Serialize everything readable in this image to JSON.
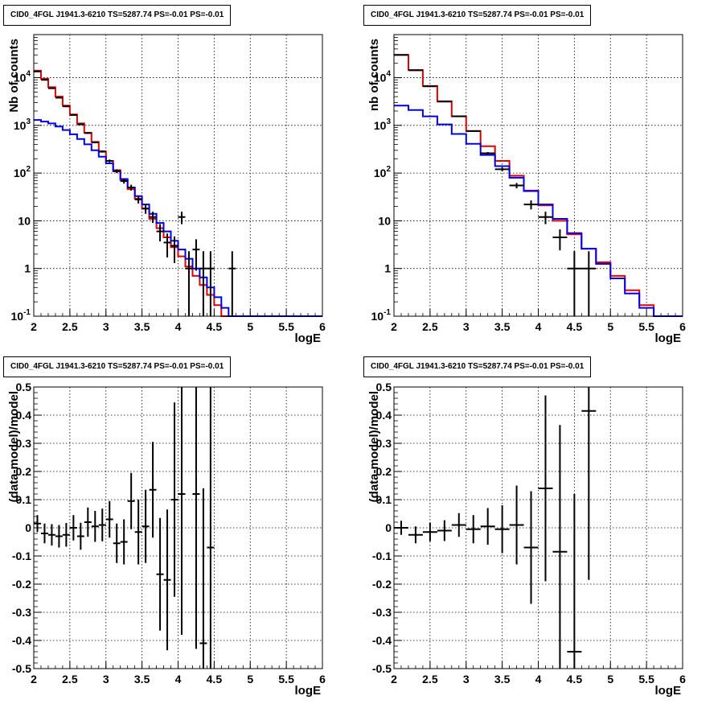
{
  "chart_data": [
    {
      "type": "line",
      "title": "CID0_4FGL J1941.3-6210 TS=5287.74 PS=-0.01 PS=-0.01",
      "xlabel": "logE",
      "ylabel": "Nb of counts",
      "xlim": [
        2,
        6
      ],
      "ylim": [
        0.1,
        80000
      ],
      "yscale": "log",
      "grid": true,
      "x_ticks": [
        "2",
        "2.5",
        "3",
        "3.5",
        "4",
        "4.5",
        "5",
        "5.5",
        "6"
      ],
      "y_ticks": [
        "10^-1",
        "1",
        "10",
        "10^2",
        "10^3",
        "10^4"
      ],
      "bin_edges_start": 2.0,
      "bin_width": 0.1,
      "series": [
        {
          "color": "#e00000",
          "values": [
            14000,
            9500,
            6300,
            4000,
            2600,
            1700,
            1100,
            700,
            450,
            280,
            180,
            115,
            72,
            46,
            29,
            18,
            11,
            7,
            4.5,
            2.8,
            1.8,
            1.1,
            0.7,
            0.45,
            0.28,
            0.17,
            0.1,
            0.1,
            0.1,
            0.1,
            0.1,
            0.1,
            0.1,
            0.1,
            0.1,
            0.1,
            0.1,
            0.1,
            0.1,
            0.1
          ]
        },
        {
          "color": "#0000e0",
          "values": [
            1300,
            1200,
            1100,
            950,
            800,
            650,
            520,
            400,
            300,
            220,
            160,
            110,
            75,
            50,
            33,
            22,
            14,
            9,
            6,
            3.8,
            2.5,
            1.6,
            1.0,
            0.65,
            0.4,
            0.25,
            0.15,
            0.1,
            0.1,
            0.1,
            0.1,
            0.1,
            0.1,
            0.1,
            0.1,
            0.1,
            0.1,
            0.1,
            0.1,
            0.1
          ]
        }
      ],
      "points": [
        {
          "x": 2.05,
          "y": 13500,
          "lo": 13300,
          "hi": 13700
        },
        {
          "x": 2.15,
          "y": 9000,
          "lo": 8850,
          "hi": 9150
        },
        {
          "x": 2.25,
          "y": 6000,
          "lo": 5900,
          "hi": 6100
        },
        {
          "x": 2.35,
          "y": 3800,
          "lo": 3730,
          "hi": 3870
        },
        {
          "x": 2.45,
          "y": 2500,
          "lo": 2450,
          "hi": 2550
        },
        {
          "x": 2.55,
          "y": 1650,
          "lo": 1610,
          "hi": 1690
        },
        {
          "x": 2.65,
          "y": 1050,
          "lo": 1020,
          "hi": 1080
        },
        {
          "x": 2.75,
          "y": 690,
          "lo": 665,
          "hi": 715
        },
        {
          "x": 2.85,
          "y": 440,
          "lo": 420,
          "hi": 460
        },
        {
          "x": 2.95,
          "y": 285,
          "lo": 270,
          "hi": 300
        },
        {
          "x": 3.05,
          "y": 180,
          "lo": 168,
          "hi": 192
        },
        {
          "x": 3.15,
          "y": 110,
          "lo": 100,
          "hi": 120
        },
        {
          "x": 3.25,
          "y": 68,
          "lo": 60,
          "hi": 76
        },
        {
          "x": 3.35,
          "y": 50,
          "lo": 43,
          "hi": 57
        },
        {
          "x": 3.45,
          "y": 28,
          "lo": 23,
          "hi": 33
        },
        {
          "x": 3.55,
          "y": 18,
          "lo": 14,
          "hi": 22
        },
        {
          "x": 3.65,
          "y": 12,
          "lo": 9,
          "hi": 15.5
        },
        {
          "x": 3.75,
          "y": 6,
          "lo": 3.7,
          "hi": 8.5
        },
        {
          "x": 3.85,
          "y": 3.5,
          "lo": 1.7,
          "hi": 5.4
        },
        {
          "x": 3.95,
          "y": 3,
          "lo": 1.3,
          "hi": 4.7
        },
        {
          "x": 4.05,
          "y": 12,
          "lo": 8.5,
          "hi": 15.5
        },
        {
          "x": 4.15,
          "y": 1,
          "lo": 0.1,
          "hi": 2.3
        },
        {
          "x": 4.25,
          "y": 2.5,
          "lo": 0.9,
          "hi": 4.1
        },
        {
          "x": 4.35,
          "y": 1,
          "lo": 0.1,
          "hi": 2.3
        },
        {
          "x": 4.45,
          "y": 1,
          "lo": 0.1,
          "hi": 2.3
        },
        {
          "x": 4.75,
          "y": 1,
          "lo": 0.1,
          "hi": 2.3
        }
      ]
    },
    {
      "type": "line",
      "title": "CID0_4FGL J1941.3-6210 TS=5287.74 PS=-0.01 PS=-0.01",
      "xlabel": "logE",
      "ylabel": "nb of counts",
      "xlim": [
        2,
        6
      ],
      "ylim": [
        0.1,
        80000
      ],
      "yscale": "log",
      "grid": true,
      "x_ticks": [
        "2",
        "2.5",
        "3",
        "3.5",
        "4",
        "4.5",
        "5",
        "5.5",
        "6"
      ],
      "y_ticks": [
        "10^-1",
        "1",
        "10",
        "10^2",
        "10^3",
        "10^4"
      ],
      "bin_edges_start": 2.0,
      "bin_width": 0.2,
      "series": [
        {
          "color": "#e00000",
          "values": [
            30000,
            14500,
            6700,
            3200,
            1550,
            760,
            365,
            180,
            88,
            43,
            21,
            10,
            5.2,
            2.6,
            1.35,
            0.7,
            0.35,
            0.17,
            0.1,
            0.1
          ]
        },
        {
          "color": "#0000e0",
          "values": [
            2600,
            2100,
            1550,
            1050,
            660,
            410,
            240,
            140,
            80,
            42,
            22,
            11,
            5.5,
            2.6,
            1.25,
            0.62,
            0.3,
            0.15,
            0.1,
            0.1
          ]
        }
      ],
      "points": [
        {
          "x": 2.1,
          "y": 30000,
          "lo": 29700,
          "hi": 30300
        },
        {
          "x": 2.3,
          "y": 14300,
          "lo": 14100,
          "hi": 14500
        },
        {
          "x": 2.5,
          "y": 6600,
          "lo": 6520,
          "hi": 6680
        },
        {
          "x": 2.7,
          "y": 3150,
          "lo": 3095,
          "hi": 3205
        },
        {
          "x": 2.9,
          "y": 1550,
          "lo": 1510,
          "hi": 1590
        },
        {
          "x": 3.1,
          "y": 760,
          "lo": 733,
          "hi": 787
        },
        {
          "x": 3.3,
          "y": 260,
          "lo": 244,
          "hi": 276
        },
        {
          "x": 3.5,
          "y": 120,
          "lo": 109,
          "hi": 131
        },
        {
          "x": 3.7,
          "y": 55,
          "lo": 48,
          "hi": 62
        },
        {
          "x": 3.9,
          "y": 22,
          "lo": 17.3,
          "hi": 26.7
        },
        {
          "x": 4.1,
          "y": 12,
          "lo": 8.5,
          "hi": 15.5
        },
        {
          "x": 4.3,
          "y": 4.5,
          "lo": 2.4,
          "hi": 6.6
        },
        {
          "x": 4.5,
          "y": 1,
          "lo": 0.1,
          "hi": 2.3
        },
        {
          "x": 4.7,
          "y": 1,
          "lo": 0.1,
          "hi": 2.3
        }
      ]
    },
    {
      "type": "scatter",
      "title": "CID0_4FGL J1941.3-6210 TS=5287.74 PS=-0.01 PS=-0.01",
      "xlabel": "logE",
      "ylabel": "(data-model)/model",
      "xlim": [
        2,
        6
      ],
      "ylim": [
        -0.5,
        0.5
      ],
      "grid": true,
      "x_ticks": [
        "2",
        "2.5",
        "3",
        "3.5",
        "4",
        "4.5",
        "5",
        "5.5",
        "6"
      ],
      "y_ticks": [
        "-0.5",
        "-0.4",
        "-0.3",
        "-0.2",
        "-0.1",
        "0",
        "0.1",
        "0.2",
        "0.3",
        "0.4",
        "0.5"
      ],
      "bin_width": 0.1,
      "points": [
        {
          "x": 2.05,
          "y": 0.015,
          "err": 0.03
        },
        {
          "x": 2.15,
          "y": -0.02,
          "err": 0.035
        },
        {
          "x": 2.25,
          "y": -0.025,
          "err": 0.038
        },
        {
          "x": 2.35,
          "y": -0.03,
          "err": 0.04
        },
        {
          "x": 2.45,
          "y": -0.025,
          "err": 0.042
        },
        {
          "x": 2.55,
          "y": 0.0,
          "err": 0.045
        },
        {
          "x": 2.65,
          "y": -0.03,
          "err": 0.048
        },
        {
          "x": 2.75,
          "y": 0.02,
          "err": 0.052
        },
        {
          "x": 2.85,
          "y": 0.005,
          "err": 0.055
        },
        {
          "x": 2.95,
          "y": 0.01,
          "err": 0.058
        },
        {
          "x": 3.05,
          "y": 0.03,
          "err": 0.065
        },
        {
          "x": 3.15,
          "y": -0.055,
          "err": 0.07
        },
        {
          "x": 3.25,
          "y": -0.05,
          "err": 0.08
        },
        {
          "x": 3.35,
          "y": 0.095,
          "err": 0.1
        },
        {
          "x": 3.45,
          "y": -0.015,
          "err": 0.115
        },
        {
          "x": 3.55,
          "y": 0.005,
          "err": 0.13
        },
        {
          "x": 3.65,
          "y": 0.135,
          "err": 0.17
        },
        {
          "x": 3.75,
          "y": -0.165,
          "err": 0.2
        },
        {
          "x": 3.85,
          "y": -0.185,
          "err": 0.25
        },
        {
          "x": 3.95,
          "y": 0.1,
          "err": 0.345
        },
        {
          "x": 4.05,
          "y": 0.12,
          "err": 0.5
        },
        {
          "x": 4.25,
          "y": 0.12,
          "err": 0.55
        },
        {
          "x": 4.35,
          "y": -0.41,
          "err": 0.55
        },
        {
          "x": 4.45,
          "y": -0.07,
          "err": 0.6
        }
      ]
    },
    {
      "type": "scatter",
      "title": "CID0_4FGL J1941.3-6210 TS=5287.74 PS=-0.01 PS=-0.01",
      "xlabel": "logE",
      "ylabel": "(data-model)/model",
      "xlim": [
        2,
        6
      ],
      "ylim": [
        -0.5,
        0.5
      ],
      "grid": true,
      "x_ticks": [
        "2",
        "2.5",
        "3",
        "3.5",
        "4",
        "4.5",
        "5",
        "5.5",
        "6"
      ],
      "y_ticks": [
        "-0.5",
        "-0.4",
        "-0.3",
        "-0.2",
        "-0.1",
        "0",
        "0.1",
        "0.2",
        "0.3",
        "0.4",
        "0.5"
      ],
      "bin_width": 0.2,
      "points": [
        {
          "x": 2.1,
          "y": 0.0,
          "err": 0.025
        },
        {
          "x": 2.3,
          "y": -0.025,
          "err": 0.03
        },
        {
          "x": 2.5,
          "y": -0.015,
          "err": 0.033
        },
        {
          "x": 2.7,
          "y": -0.01,
          "err": 0.037
        },
        {
          "x": 2.9,
          "y": 0.01,
          "err": 0.042
        },
        {
          "x": 3.1,
          "y": -0.005,
          "err": 0.05
        },
        {
          "x": 3.3,
          "y": 0.005,
          "err": 0.065
        },
        {
          "x": 3.5,
          "y": -0.005,
          "err": 0.085
        },
        {
          "x": 3.7,
          "y": 0.01,
          "err": 0.14
        },
        {
          "x": 3.9,
          "y": -0.07,
          "err": 0.2
        },
        {
          "x": 4.1,
          "y": 0.14,
          "err": 0.33
        },
        {
          "x": 4.3,
          "y": -0.085,
          "err": 0.45
        },
        {
          "x": 4.5,
          "y": -0.44,
          "err": 0.56
        },
        {
          "x": 4.7,
          "y": 0.415,
          "err": 0.6
        }
      ]
    }
  ]
}
